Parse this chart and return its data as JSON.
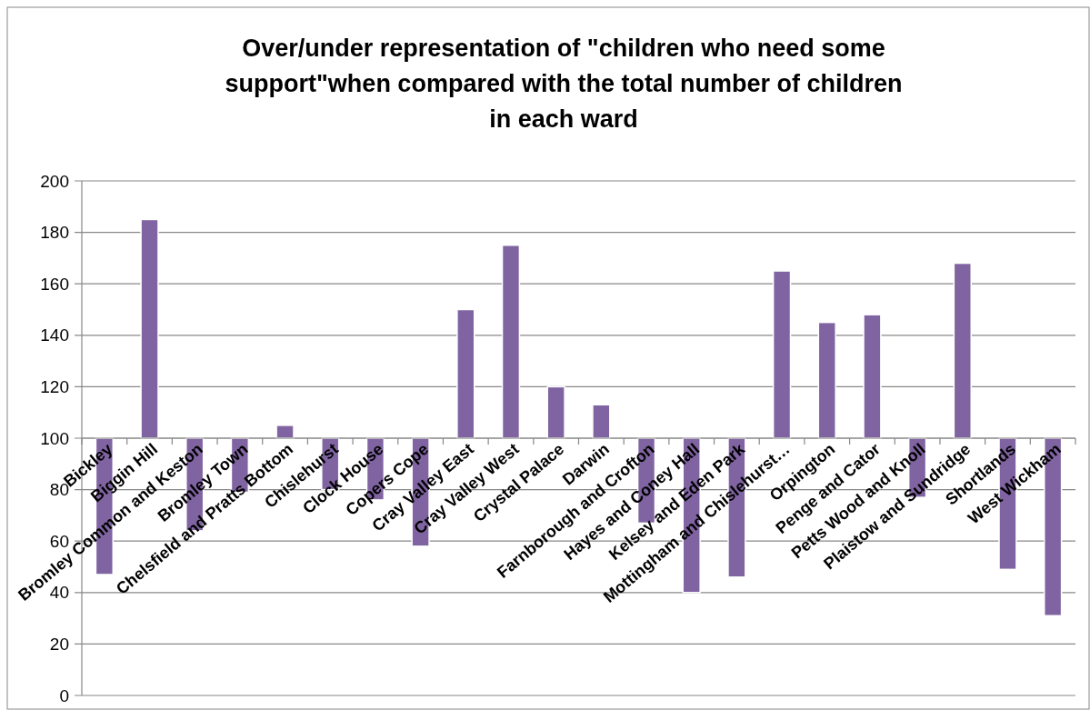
{
  "chart_data": {
    "type": "bar",
    "title": "Over/under representation of \"children who need some support\"when compared with the total number of children in each ward",
    "categories": [
      "Bickley",
      "Biggin Hill",
      "Bromley Common and Keston",
      "Bromley Town",
      "Chelsfield and Pratts Bottom",
      "Chislehurst",
      "Clock House",
      "Copers Cope",
      "Cray Valley East",
      "Cray Valley West",
      "Crystal Palace",
      "Darwin",
      "Farnborough and Crofton",
      "Hayes and Coney Hall",
      "Kelsey and Eden Park",
      "Mottingham and Chislehurst…",
      "Orpington",
      "Penge and Cator",
      "Petts Wood and Knoll",
      "Plaistow and Sundridge",
      "Shortlands",
      "West Wickham"
    ],
    "base": [
      100,
      100,
      100,
      100,
      100,
      100,
      100,
      100,
      100,
      100,
      100,
      100,
      100,
      100,
      100,
      100,
      100,
      100,
      100,
      100,
      100,
      100
    ],
    "values": [
      -53,
      85,
      -36,
      -21,
      5,
      -20,
      -24,
      -42,
      50,
      75,
      20,
      13,
      -33,
      -60,
      -54,
      65,
      45,
      48,
      -23,
      68,
      -51,
      -69
    ],
    "color": "#8064a2",
    "ylim": [
      0,
      200
    ],
    "yticks": [
      0,
      20,
      40,
      60,
      80,
      100,
      120,
      140,
      160,
      180,
      200
    ],
    "grid": "y"
  }
}
